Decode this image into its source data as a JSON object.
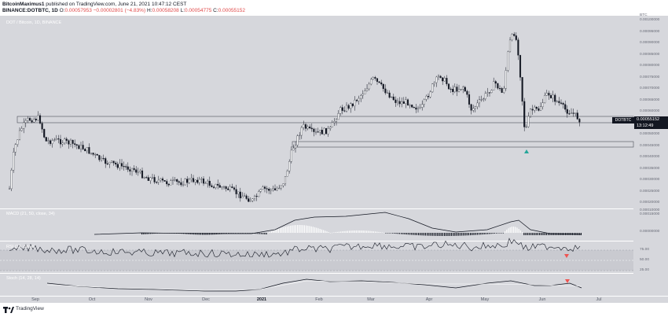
{
  "header": {
    "author": "BitcoinMaximus1",
    "published": "published on TradingView.com, June 21, 2021 10:47:12 CEST",
    "symbol_line": "BINANCE:DOTBTC, 1D",
    "open_label": "O:",
    "open": "0.00057953",
    "change": "−0.00002801 (−4.83%)",
    "high_label": "H:",
    "high": "0.00058208",
    "low_label": "L:",
    "low": "0.00054775",
    "close_label": "C:",
    "close": "0.00055152"
  },
  "main_pane": {
    "label": "DOT / Bitcoin, 1D, BINANCE",
    "currency": "BTC",
    "price_axis": [
      "0.00100000",
      "0.00095000",
      "0.00090000",
      "0.00085000",
      "0.00080000",
      "0.00075000",
      "0.00070000",
      "0.00065000",
      "0.00060000",
      "0.00055000",
      "0.00050000",
      "0.00045000",
      "0.00040000",
      "0.00035000",
      "0.00030000",
      "0.00025000",
      "0.00020000",
      "0.00015000"
    ],
    "symbol_tag": "DOTBTC",
    "last_price": "0.00055152",
    "countdown": "13:12:49"
  },
  "macd_pane": {
    "label": "MACD (21, 50, close, 34)",
    "axis": [
      "0.00010000",
      "0.00000000"
    ]
  },
  "rsi_pane": {
    "label": "RSI (14, close)",
    "axis": [
      "75.00",
      "50.00",
      "25.00"
    ]
  },
  "stoch_pane": {
    "label": "Stoch (14, 28, 14)",
    "axis": []
  },
  "time_axis": [
    "Sep",
    "Oct",
    "Nov",
    "Dec",
    "2021",
    "Feb",
    "Mar",
    "Apr",
    "May",
    "Jun",
    "Jul"
  ],
  "footer": {
    "brand": "TradingView"
  },
  "colors": {
    "pane_bg": "#d6d7dc",
    "up": "#ffffff",
    "down": "#131722",
    "arrow_up": "#26a69a",
    "arrow_down": "#ef5350"
  },
  "icons": {
    "logo": "tradingview-logo-icon"
  }
}
